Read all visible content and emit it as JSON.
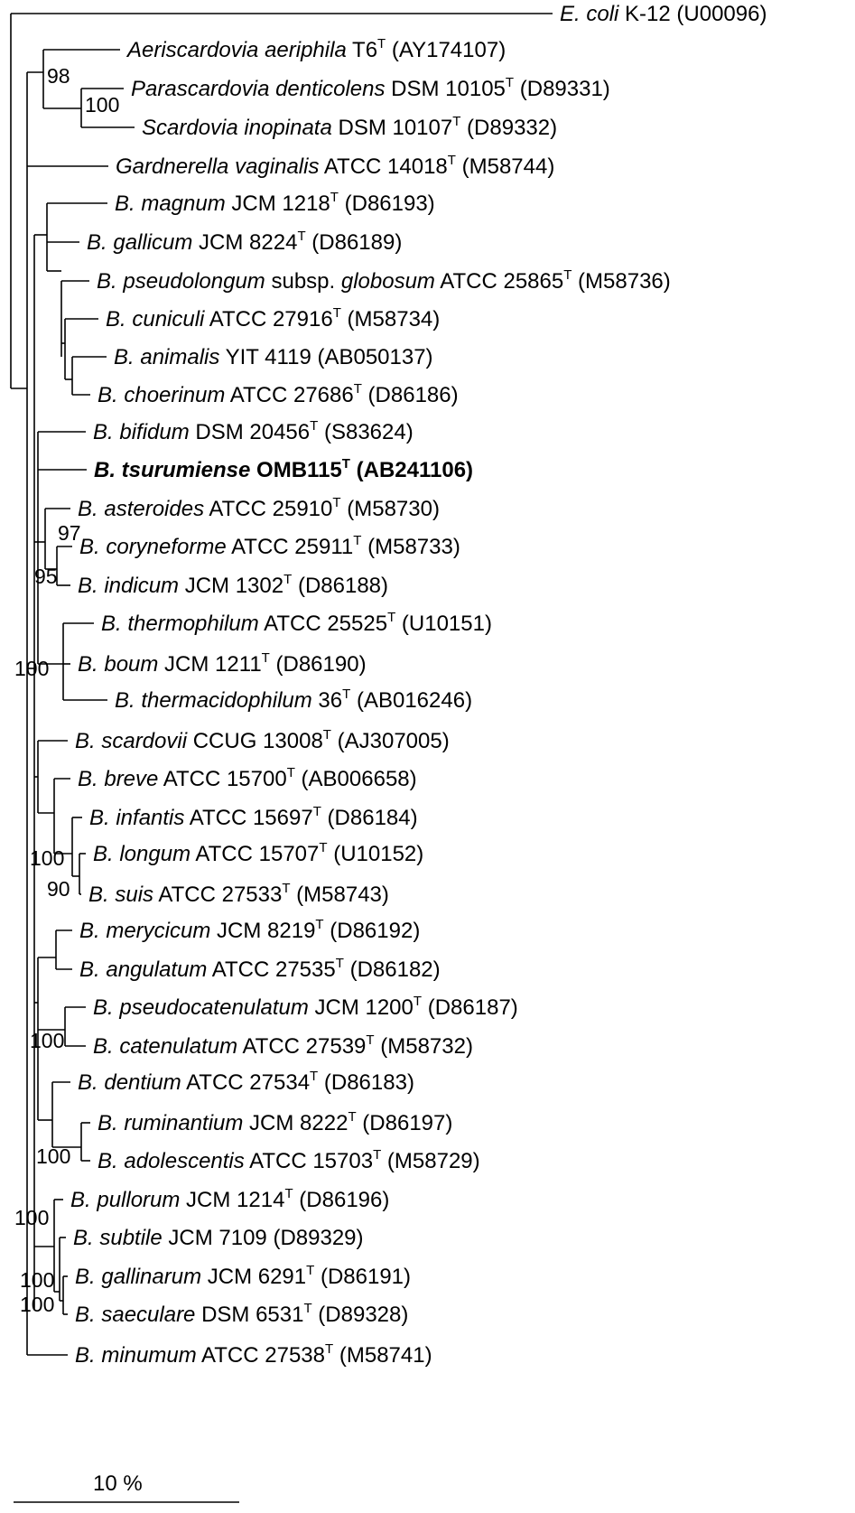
{
  "taxa": [
    {
      "id": "ecoli",
      "italic": "E. coli",
      "mid": "",
      "italic2": "",
      "strain": " K-12",
      "type": false,
      "acc": " (U00096)"
    },
    {
      "id": "aeriscardovia",
      "italic": "Aeriscardovia aeriphila",
      "mid": "",
      "italic2": "",
      "strain": " T6",
      "type": true,
      "acc": " (AY174107)"
    },
    {
      "id": "parascardovia",
      "italic": "Parascardovia denticolens",
      "mid": "",
      "italic2": "",
      "strain": " DSM 10105",
      "type": true,
      "acc": " (D89331)"
    },
    {
      "id": "scardovia",
      "italic": "Scardovia inopinata",
      "mid": "",
      "italic2": "",
      "strain": " DSM 10107",
      "type": true,
      "acc": " (D89332)"
    },
    {
      "id": "gardnerella",
      "italic": "Gardnerella vaginalis",
      "mid": "",
      "italic2": "",
      "strain": " ATCC 14018",
      "type": true,
      "acc": " (M58744)"
    },
    {
      "id": "magnum",
      "italic": "B. magnum",
      "mid": "",
      "italic2": "",
      "strain": " JCM 1218",
      "type": true,
      "acc": " (D86193)"
    },
    {
      "id": "gallicum",
      "italic": "B. gallicum",
      "mid": "",
      "italic2": "",
      "strain": " JCM 8224",
      "type": true,
      "acc": " (D86189)"
    },
    {
      "id": "pseudolongum",
      "italic": "B. pseudolongum",
      "mid": " subsp. ",
      "italic2": "globosum",
      "strain": " ATCC 25865",
      "type": true,
      "acc": " (M58736)"
    },
    {
      "id": "cuniculi",
      "italic": "B. cuniculi",
      "mid": "",
      "italic2": "",
      "strain": " ATCC 27916",
      "type": true,
      "acc": " (M58734)"
    },
    {
      "id": "animalis",
      "italic": "B. animalis",
      "mid": "",
      "italic2": "",
      "strain": " YIT 4119",
      "type": false,
      "acc": " (AB050137)"
    },
    {
      "id": "choerinum",
      "italic": "B. choerinum",
      "mid": "",
      "italic2": "",
      "strain": " ATCC 27686",
      "type": true,
      "acc": " (D86186)"
    },
    {
      "id": "bifidum",
      "italic": "B. bifidum",
      "mid": "",
      "italic2": "",
      "strain": " DSM 20456",
      "type": true,
      "acc": " (S83624)"
    },
    {
      "id": "tsurumiense",
      "italic": "B. tsurumiense",
      "mid": "",
      "italic2": "",
      "strain": " OMB115",
      "type": true,
      "acc": " (AB241106)",
      "bold": true
    },
    {
      "id": "asteroides",
      "italic": "B. asteroides",
      "mid": "",
      "italic2": "",
      "strain": " ATCC 25910",
      "type": true,
      "acc": " (M58730)"
    },
    {
      "id": "coryneforme",
      "italic": "B. coryneforme",
      "mid": "",
      "italic2": "",
      "strain": " ATCC 25911",
      "type": true,
      "acc": " (M58733)"
    },
    {
      "id": "indicum",
      "italic": "B. indicum",
      "mid": "",
      "italic2": "",
      "strain": " JCM 1302",
      "type": true,
      "acc": " (D86188)"
    },
    {
      "id": "thermophilum",
      "italic": "B. thermophilum",
      "mid": "",
      "italic2": "",
      "strain": " ATCC 25525",
      "type": true,
      "acc": " (U10151)"
    },
    {
      "id": "boum",
      "italic": "B. boum",
      "mid": "",
      "italic2": "",
      "strain": " JCM 1211",
      "type": true,
      "acc": " (D86190)"
    },
    {
      "id": "thermacidophilum",
      "italic": "B. thermacidophilum",
      "mid": "",
      "italic2": "",
      "strain": " 36",
      "type": true,
      "acc": " (AB016246)"
    },
    {
      "id": "scardovii",
      "italic": "B. scardovii",
      "mid": "",
      "italic2": "",
      "strain": " CCUG 13008",
      "type": true,
      "acc": " (AJ307005)"
    },
    {
      "id": "breve",
      "italic": "B. breve",
      "mid": "",
      "italic2": "",
      "strain": " ATCC 15700",
      "type": true,
      "acc": " (AB006658)"
    },
    {
      "id": "infantis",
      "italic": "B. infantis",
      "mid": "",
      "italic2": "",
      "strain": " ATCC 15697",
      "type": true,
      "acc": " (D86184)"
    },
    {
      "id": "longum",
      "italic": "B. longum",
      "mid": "",
      "italic2": "",
      "strain": " ATCC 15707",
      "type": true,
      "acc": " (U10152)"
    },
    {
      "id": "suis",
      "italic": "B. suis",
      "mid": "",
      "italic2": "",
      "strain": " ATCC 27533",
      "type": true,
      "acc": " (M58743)"
    },
    {
      "id": "merycicum",
      "italic": "B. merycicum",
      "mid": "",
      "italic2": "",
      "strain": " JCM 8219",
      "type": true,
      "acc": " (D86192)"
    },
    {
      "id": "angulatum",
      "italic": "B. angulatum",
      "mid": "",
      "italic2": "",
      "strain": " ATCC 27535",
      "type": true,
      "acc": " (D86182)"
    },
    {
      "id": "pseudocatenulatum",
      "italic": "B. pseudocatenulatum",
      "mid": "",
      "italic2": "",
      "strain": " JCM 1200",
      "type": true,
      "acc": " (D86187)"
    },
    {
      "id": "catenulatum",
      "italic": "B. catenulatum",
      "mid": "",
      "italic2": "",
      "strain": " ATCC 27539",
      "type": true,
      "acc": " (M58732)"
    },
    {
      "id": "dentium",
      "italic": "B. dentium",
      "mid": "",
      "italic2": "",
      "strain": " ATCC 27534",
      "type": true,
      "acc": " (D86183)"
    },
    {
      "id": "ruminantium",
      "italic": "B. ruminantium",
      "mid": "",
      "italic2": "",
      "strain": " JCM 8222",
      "type": true,
      "acc": " (D86197)"
    },
    {
      "id": "adolescentis",
      "italic": "B. adolescentis",
      "mid": "",
      "italic2": "",
      "strain": " ATCC 15703",
      "type": true,
      "acc": " (M58729)"
    },
    {
      "id": "pullorum",
      "italic": "B. pullorum",
      "mid": "",
      "italic2": "",
      "strain": " JCM 1214",
      "type": true,
      "acc": " (D86196)"
    },
    {
      "id": "subtile",
      "italic": "B. subtile",
      "mid": "",
      "italic2": "",
      "strain": " JCM 7109",
      "type": false,
      "acc": " (D89329)"
    },
    {
      "id": "gallinarum",
      "italic": "B. gallinarum",
      "mid": "",
      "italic2": "",
      "strain": " JCM 6291",
      "type": true,
      "acc": " (D86191)"
    },
    {
      "id": "saeculare",
      "italic": "B. saeculare",
      "mid": "",
      "italic2": "",
      "strain": " DSM 6531",
      "type": true,
      "acc": " (D89328)"
    },
    {
      "id": "minumum",
      "italic": "B. minumum",
      "mid": "",
      "italic2": "",
      "strain": " ATCC 27538",
      "type": true,
      "acc": " (M58741)"
    }
  ],
  "type_marker": "T",
  "bootstrap": [
    {
      "id": "bs-scardovia-group",
      "value": "98"
    },
    {
      "id": "bs-parascardovia-scardovia",
      "value": "100"
    },
    {
      "id": "bs-coryneforme-indicum",
      "value": "97"
    },
    {
      "id": "bs-asteroides-clade",
      "value": "95"
    },
    {
      "id": "bs-bifidobacterium",
      "value": "100"
    },
    {
      "id": "bs-longum-group",
      "value": "100"
    },
    {
      "id": "bs-longum-suis",
      "value": "90"
    },
    {
      "id": "bs-catenulatum-group",
      "value": "100"
    },
    {
      "id": "bs-adolescentis-group",
      "value": "100"
    },
    {
      "id": "bs-pullorum-group",
      "value": "100"
    },
    {
      "id": "bs-gallinarum-group",
      "value": "100"
    },
    {
      "id": "bs-saeculare-group",
      "value": "100"
    }
  ],
  "scale_bar": {
    "label": "10 %"
  }
}
